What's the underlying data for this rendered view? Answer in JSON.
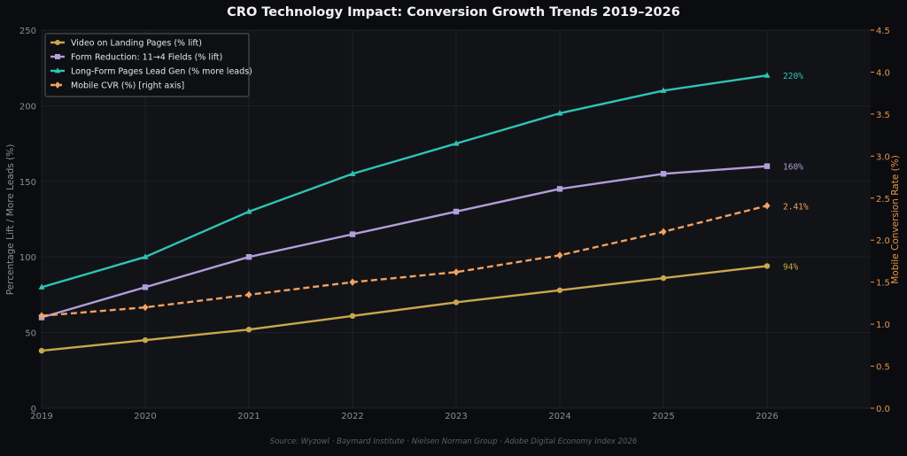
{
  "chart_data": {
    "type": "line",
    "title": "CRO Technology Impact: Conversion Growth Trends 2019–2026",
    "ylabel": "Percentage Lift / More Leads (%)",
    "y2label": "Mobile Conversion Rate (%)",
    "source": "Source: Wyzowl · Baymard Institute · Nielsen Norman Group · Adobe Digital Economy Index 2026",
    "x": [
      2019,
      2020,
      2021,
      2022,
      2023,
      2024,
      2025,
      2026
    ],
    "x_tick_labels": [
      "2019",
      "2020",
      "2021",
      "2022",
      "2023",
      "2024",
      "2025",
      "2026"
    ],
    "xlim": [
      2019,
      2027
    ],
    "ylim": [
      0,
      250
    ],
    "y_ticks": [
      0,
      50,
      100,
      150,
      200,
      250
    ],
    "y_tick_labels": [
      "0",
      "50",
      "100",
      "150",
      "200",
      "250"
    ],
    "y2lim": [
      0,
      4.5
    ],
    "y2_ticks": [
      0,
      0.5,
      1,
      1.5,
      2,
      2.5,
      3,
      3.5,
      4,
      4.5
    ],
    "y2_tick_labels": [
      "0.0",
      "0.5",
      "1.0",
      "1.5",
      "2.0",
      "2.5",
      "3.0",
      "3.5",
      "4.0",
      "4.5"
    ],
    "grid": true,
    "legend_position": "top-left",
    "series": [
      {
        "name": "Video on Landing Pages (% lift)",
        "axis": "left",
        "color": "#c9a84c",
        "marker": "circle",
        "dashed": false,
        "values": [
          38,
          45,
          52,
          61,
          70,
          78,
          86,
          94
        ],
        "end_label": "94%"
      },
      {
        "name": "Form Reduction: 11→4 Fields (% lift)",
        "axis": "left",
        "color": "#b39ddb",
        "marker": "square",
        "dashed": false,
        "values": [
          60,
          80,
          100,
          115,
          130,
          145,
          155,
          160
        ],
        "end_label": "160%"
      },
      {
        "name": "Long-Form Pages Lead Gen (% more leads)",
        "axis": "left",
        "color": "#2ec4b6",
        "marker": "triangle",
        "dashed": false,
        "values": [
          80,
          100,
          130,
          155,
          175,
          195,
          210,
          220
        ],
        "end_label": "220%"
      },
      {
        "name": "Mobile CVR (%) [right axis]",
        "axis": "right",
        "color": "#f4a261",
        "marker": "diamond",
        "dashed": true,
        "values": [
          1.1,
          1.2,
          1.35,
          1.5,
          1.62,
          1.82,
          2.1,
          2.41
        ],
        "end_label": "2.41%"
      }
    ],
    "colors": {
      "background": "#0b0c10",
      "plot_background": "#121317",
      "grid": "#1f2128",
      "left_axis_text": "#8a8d96",
      "right_axis_text": "#e8954a",
      "title": "#f2f2f2",
      "source": "#5c5f68"
    }
  }
}
